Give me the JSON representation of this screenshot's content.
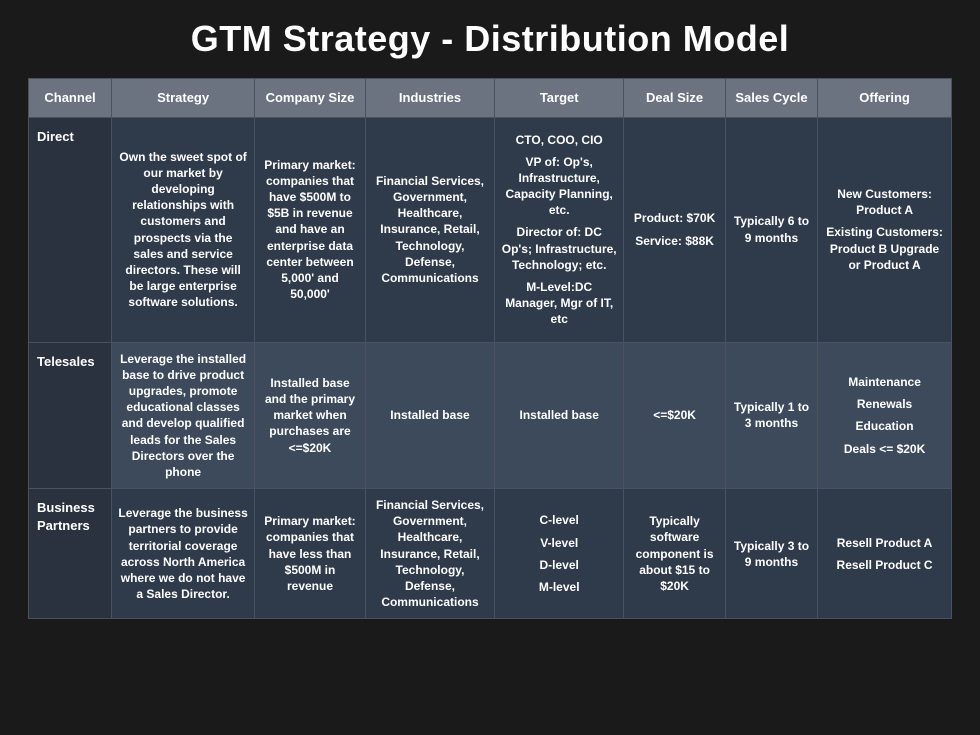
{
  "title": "GTM Strategy - Distribution Model",
  "table": {
    "columns": [
      "Channel",
      "Strategy",
      "Company Size",
      "Industries",
      "Target",
      "Deal Size",
      "Sales Cycle",
      "Offering"
    ],
    "rows": [
      {
        "channel": "Direct",
        "strategy": "Own the sweet spot of our market by developing relationships with customers and prospects via the sales and service directors.  These will be large enterprise software solutions.",
        "company_size": "Primary market: companies that have $500M to $5B in revenue and have an enterprise data center between 5,000' and 50,000'",
        "industries": "Financial Services, Government, Healthcare, Insurance, Retail, Technology, Defense, Communications",
        "target_lines": [
          "CTO, COO, CIO",
          "VP of: Op's, Infrastructure, Capacity Planning, etc.",
          "Director of: DC Op's; Infrastructure, Technology; etc.",
          "M-Level:DC Manager, Mgr of IT, etc"
        ],
        "deal_size_lines": [
          "Product: $70K",
          "Service: $88K"
        ],
        "sales_cycle": "Typically 6 to 9 months",
        "offering_lines": [
          "New Customers: Product A",
          "Existing Customers: Product B Upgrade or Product A"
        ]
      },
      {
        "channel": "Telesales",
        "strategy": "Leverage the installed base to drive product upgrades, promote educational classes and develop qualified leads for the Sales Directors over the phone",
        "company_size": "Installed base and the primary market when purchases are <=$20K",
        "industries": "Installed base",
        "target_lines": [
          "Installed base"
        ],
        "deal_size_lines": [
          "<=$20K"
        ],
        "sales_cycle": "Typically 1 to 3 months",
        "offering_lines": [
          "Maintenance",
          "Renewals",
          "Education",
          "Deals <= $20K"
        ]
      },
      {
        "channel": "Business Partners",
        "strategy": "Leverage the business partners to provide territorial coverage across North America where we do not have a Sales Director.",
        "company_size": "Primary market: companies that have less than $500M in revenue",
        "industries": "Financial Services, Government, Healthcare, Insurance, Retail, Technology, Defense, Communications",
        "target_lines": [
          "C-level",
          "V-level",
          "D-level",
          "M-level"
        ],
        "deal_size_lines": [
          "Typically software component is about $15 to $20K"
        ],
        "sales_cycle": "Typically 3 to 9 months",
        "offering_lines": [
          "Resell Product A",
          "Resell Product C"
        ]
      }
    ],
    "header_bg": "#6b7280",
    "row_alt_bg_a": "#2f3a4a",
    "row_alt_bg_b": "#3d4a5c",
    "row_header_bg": "#2a3240",
    "border_color": "#4a5260",
    "page_bg": "#1a1a1a",
    "text_color": "#ffffff",
    "title_fontsize": 36,
    "header_fontsize": 13,
    "cell_fontsize": 12
  }
}
